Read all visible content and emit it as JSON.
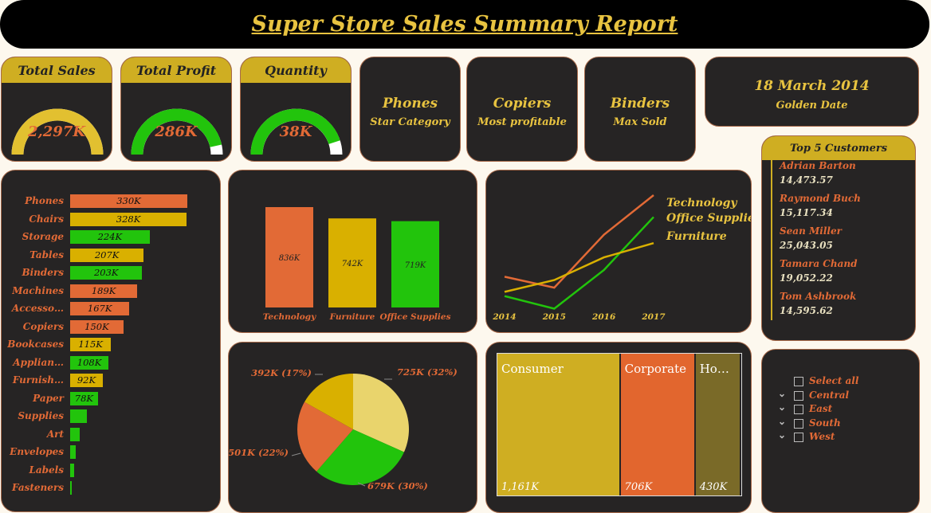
{
  "header": {
    "title": "Super Store Sales Summary Report"
  },
  "kpis": [
    {
      "label": "Total Sales",
      "value": "2,297K",
      "fraction": 1.0,
      "color": "#e2c030"
    },
    {
      "label": "Total Profit",
      "value": "286K",
      "fraction": 0.93,
      "color": "#22c40c"
    },
    {
      "label": "Quantity",
      "value": "38K",
      "fraction": 0.9,
      "color": "#22c40c"
    }
  ],
  "info_cards": [
    {
      "title": "Phones",
      "subtitle": "Star Category"
    },
    {
      "title": "Copiers",
      "subtitle": "Most profitable"
    },
    {
      "title": "Binders",
      "subtitle": "Max Sold"
    }
  ],
  "date_card": {
    "title": "18 March 2014",
    "subtitle": "Golden Date"
  },
  "top_customers": {
    "title": "Top 5 Customers",
    "items": [
      {
        "name": "Adrian Barton",
        "value": "14,473.57"
      },
      {
        "name": "Raymond Buch",
        "value": "15,117.34"
      },
      {
        "name": "Sean Miller",
        "value": "25,043.05"
      },
      {
        "name": "Tamara Chand",
        "value": "19,052.22"
      },
      {
        "name": "Tom Ashbrook",
        "value": "14,595.62"
      }
    ]
  },
  "slicer": {
    "items": [
      {
        "label": "Select all",
        "chevron": false
      },
      {
        "label": "Central",
        "chevron": true
      },
      {
        "label": "East",
        "chevron": true
      },
      {
        "label": "South",
        "chevron": true
      },
      {
        "label": "West",
        "chevron": true
      }
    ]
  },
  "colors": {
    "orange": "#e26a36",
    "gold": "#d9b000",
    "green": "#22c40c",
    "dark": "#262424",
    "title_gold": "#e8c340"
  },
  "chart_data": [
    {
      "type": "bar",
      "orientation": "horizontal",
      "categories": [
        "Phones",
        "Chairs",
        "Storage",
        "Tables",
        "Binders",
        "Machines",
        "Accesso…",
        "Copiers",
        "Bookcases",
        "Applian…",
        "Furnish…",
        "Paper",
        "Supplies",
        "Art",
        "Envelopes",
        "Labels",
        "Fasteners"
      ],
      "values": [
        330,
        328,
        224,
        207,
        203,
        189,
        167,
        150,
        115,
        108,
        92,
        78,
        47,
        27,
        16,
        12,
        3
      ],
      "value_labels": [
        "330K",
        "328K",
        "224K",
        "207K",
        "203K",
        "189K",
        "167K",
        "150K",
        "115K",
        "108K",
        "92K",
        "78K",
        "",
        "",
        "",
        "",
        ""
      ],
      "colors": [
        "#e26a36",
        "#d9b000",
        "#22c40c",
        "#d9b000",
        "#22c40c",
        "#e26a36",
        "#e26a36",
        "#e26a36",
        "#d9b000",
        "#22c40c",
        "#d9b000",
        "#22c40c",
        "#22c40c",
        "#22c40c",
        "#22c40c",
        "#22c40c",
        "#22c40c"
      ],
      "xlim": [
        0,
        330
      ]
    },
    {
      "type": "bar",
      "categories": [
        "Technology",
        "Furniture",
        "Office Supplies"
      ],
      "values": [
        836,
        742,
        719
      ],
      "value_labels": [
        "836K",
        "742K",
        "719K"
      ],
      "colors": [
        "#e26a36",
        "#d9b000",
        "#22c40c"
      ]
    },
    {
      "type": "line",
      "x": [
        "2014",
        "2015",
        "2016",
        "2017"
      ],
      "series": [
        {
          "name": "Technology",
          "values": [
            175,
            162,
            225,
            272
          ],
          "color": "#e26a36"
        },
        {
          "name": "Office Supplies",
          "values": [
            152,
            137,
            183,
            246
          ],
          "color": "#22c40c"
        },
        {
          "name": "Furniture",
          "values": [
            157,
            171,
            198,
            215
          ],
          "color": "#d9b000"
        }
      ],
      "ylim": [
        110,
        290
      ]
    },
    {
      "type": "pie",
      "slices": [
        {
          "label": "725K (32%)",
          "value": 32,
          "color": "#e9d46c"
        },
        {
          "label": "679K (30%)",
          "value": 30,
          "color": "#22c40c"
        },
        {
          "label": "501K (22%)",
          "value": 22,
          "color": "#e26a36"
        },
        {
          "label": "392K (17%)",
          "value": 17,
          "color": "#d9b000"
        }
      ]
    },
    {
      "type": "treemap",
      "items": [
        {
          "label": "Consumer",
          "value": 1161,
          "value_label": "1,161K",
          "color": "#cfae22"
        },
        {
          "label": "Corporate",
          "value": 706,
          "value_label": "706K",
          "color": "#e2662e"
        },
        {
          "label": "Ho…",
          "value": 430,
          "value_label": "430K",
          "color": "#7a6a28"
        }
      ]
    }
  ]
}
